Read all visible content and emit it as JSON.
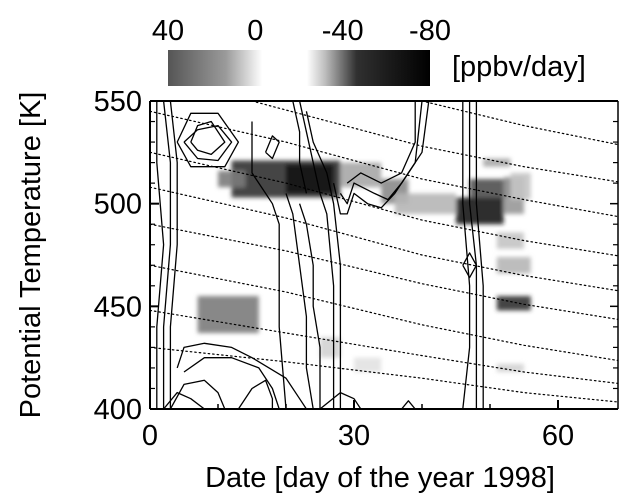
{
  "chart_data": {
    "type": "heatmap",
    "title": "",
    "xlabel": "Date [day of the year 1998]",
    "ylabel": "Potential Temperature [K]",
    "xlim": [
      0,
      70
    ],
    "ylim": [
      400,
      550
    ],
    "xticks": [
      0,
      30,
      60
    ],
    "yticks": [
      400,
      450,
      500,
      550
    ],
    "colorbar": {
      "ticks": [
        40,
        0,
        -40,
        -80
      ],
      "range": [
        40,
        -80
      ],
      "unit": "[ppbv/day]",
      "colors": [
        "#3a3a3a",
        "#ffffff",
        "#000000"
      ]
    },
    "heat_cells": [
      {
        "x": [
          12,
          28
        ],
        "y": [
          503,
          521
        ],
        "value": -70
      },
      {
        "x": [
          10,
          14
        ],
        "y": [
          508,
          516
        ],
        "value": -45
      },
      {
        "x": [
          20,
          27
        ],
        "y": [
          505,
          519
        ],
        "value": -80
      },
      {
        "x": [
          28,
          34
        ],
        "y": [
          508,
          520
        ],
        "value": -30
      },
      {
        "x": [
          34,
          38
        ],
        "y": [
          500,
          512
        ],
        "value": -40
      },
      {
        "x": [
          36,
          45
        ],
        "y": [
          495,
          505
        ],
        "value": -25
      },
      {
        "x": [
          45,
          52
        ],
        "y": [
          490,
          503
        ],
        "value": -80
      },
      {
        "x": [
          47,
          53
        ],
        "y": [
          503,
          512
        ],
        "value": -60
      },
      {
        "x": [
          52,
          55
        ],
        "y": [
          495,
          513
        ],
        "value": -35
      },
      {
        "x": [
          49,
          53
        ],
        "y": [
          518,
          522
        ],
        "value": -30
      },
      {
        "x": [
          53,
          56
        ],
        "y": [
          502,
          515
        ],
        "value": -20
      },
      {
        "x": [
          51,
          55
        ],
        "y": [
          478,
          486
        ],
        "value": -20
      },
      {
        "x": [
          51,
          56
        ],
        "y": [
          466,
          474
        ],
        "value": -25
      },
      {
        "x": [
          51,
          56
        ],
        "y": [
          448,
          455
        ],
        "value": -70
      },
      {
        "x": [
          51,
          55
        ],
        "y": [
          418,
          422
        ],
        "value": -15
      },
      {
        "x": [
          7,
          16
        ],
        "y": [
          437,
          455
        ],
        "value": -45
      },
      {
        "x": [
          25,
          28
        ],
        "y": [
          425,
          435
        ],
        "value": -15
      },
      {
        "x": [
          30,
          34
        ],
        "y": [
          418,
          425
        ],
        "value": -10
      }
    ],
    "contours": [
      [
        [
          1,
          550
        ],
        [
          1,
          520
        ],
        [
          2,
          480
        ],
        [
          1,
          440
        ],
        [
          1,
          400
        ]
      ],
      [
        [
          2,
          550
        ],
        [
          3,
          520
        ],
        [
          3,
          480
        ],
        [
          2,
          440
        ],
        [
          2,
          400
        ]
      ],
      [
        [
          3,
          550
        ],
        [
          4,
          520
        ],
        [
          4,
          480
        ],
        [
          3,
          440
        ],
        [
          3,
          400
        ]
      ],
      [
        [
          6,
          530
        ],
        [
          7,
          538
        ],
        [
          9,
          540
        ],
        [
          11,
          530
        ],
        [
          9,
          524
        ],
        [
          7,
          526
        ],
        [
          6,
          530
        ]
      ],
      [
        [
          5,
          530
        ],
        [
          7,
          536
        ],
        [
          10,
          538
        ],
        [
          12,
          530
        ],
        [
          10,
          521
        ],
        [
          7,
          522
        ],
        [
          5,
          530
        ]
      ],
      [
        [
          4,
          530
        ],
        [
          6,
          544
        ],
        [
          10,
          544
        ],
        [
          13,
          530
        ],
        [
          11,
          518
        ],
        [
          6,
          518
        ],
        [
          4,
          530
        ]
      ],
      [
        [
          15,
          540
        ],
        [
          15,
          515
        ],
        [
          17,
          505
        ],
        [
          18,
          500
        ],
        [
          19,
          490
        ],
        [
          19,
          470
        ],
        [
          19,
          440
        ],
        [
          20,
          400
        ]
      ],
      [
        [
          17,
          525
        ],
        [
          18,
          533
        ],
        [
          19,
          530
        ],
        [
          18,
          522
        ],
        [
          17,
          525
        ]
      ],
      [
        [
          20,
          505
        ],
        [
          21,
          495
        ],
        [
          22,
          470
        ],
        [
          23,
          445
        ],
        [
          23,
          420
        ],
        [
          24,
          400
        ]
      ],
      [
        [
          22,
          500
        ],
        [
          23,
          490
        ],
        [
          24,
          470
        ],
        [
          24,
          450
        ],
        [
          25,
          430
        ],
        [
          25,
          400
        ]
      ],
      [
        [
          21,
          550
        ],
        [
          22,
          535
        ],
        [
          22,
          520
        ],
        [
          23,
          505
        ]
      ],
      [
        [
          22,
          550
        ],
        [
          23,
          535
        ],
        [
          24,
          520
        ],
        [
          25,
          505
        ],
        [
          26,
          495
        ],
        [
          27,
          460
        ],
        [
          27,
          440
        ],
        [
          27,
          400
        ]
      ],
      [
        [
          23,
          545
        ],
        [
          24,
          530
        ],
        [
          26,
          515
        ],
        [
          27,
          500
        ],
        [
          28,
          470
        ],
        [
          28,
          440
        ],
        [
          28,
          400
        ]
      ],
      [
        [
          27,
          510
        ],
        [
          28,
          495
        ],
        [
          29,
          495
        ],
        [
          30,
          505
        ],
        [
          32,
          500
        ],
        [
          34,
          498
        ],
        [
          36,
          505
        ],
        [
          38,
          515
        ],
        [
          40,
          525
        ],
        [
          41,
          550
        ]
      ],
      [
        [
          28,
          505
        ],
        [
          29,
          500
        ],
        [
          30,
          510
        ],
        [
          33,
          505
        ],
        [
          35,
          502
        ],
        [
          37,
          510
        ],
        [
          39,
          520
        ],
        [
          40,
          550
        ]
      ],
      [
        [
          29,
          510
        ],
        [
          31,
          515
        ],
        [
          34,
          510
        ],
        [
          37,
          515
        ],
        [
          39,
          530
        ],
        [
          39,
          550
        ]
      ],
      [
        [
          46,
          550
        ],
        [
          46,
          500
        ],
        [
          47,
          460
        ],
        [
          47,
          430
        ],
        [
          46,
          400
        ]
      ],
      [
        [
          47,
          550
        ],
        [
          47,
          500
        ],
        [
          48,
          470
        ],
        [
          48,
          440
        ],
        [
          48,
          400
        ]
      ],
      [
        [
          48,
          550
        ],
        [
          48,
          500
        ],
        [
          49,
          460
        ],
        [
          49,
          420
        ],
        [
          49,
          400
        ]
      ],
      [
        [
          46,
          470
        ],
        [
          47,
          476
        ],
        [
          48,
          470
        ],
        [
          47,
          464
        ],
        [
          46,
          470
        ]
      ],
      [
        [
          2,
          400
        ],
        [
          4,
          408
        ],
        [
          6,
          405
        ],
        [
          8,
          400
        ]
      ],
      [
        [
          3,
          400
        ],
        [
          5,
          412
        ],
        [
          8,
          414
        ],
        [
          10,
          408
        ],
        [
          11,
          400
        ]
      ],
      [
        [
          4,
          420
        ],
        [
          5,
          430
        ],
        [
          8,
          432
        ],
        [
          12,
          430
        ],
        [
          15,
          425
        ],
        [
          20,
          415
        ],
        [
          22,
          405
        ],
        [
          23,
          400
        ]
      ],
      [
        [
          5,
          418
        ],
        [
          8,
          425
        ],
        [
          12,
          425
        ],
        [
          16,
          420
        ],
        [
          18,
          410
        ],
        [
          19,
          400
        ]
      ],
      [
        [
          13,
          400
        ],
        [
          15,
          410
        ],
        [
          17,
          414
        ],
        [
          18,
          405
        ],
        [
          18,
          400
        ]
      ],
      [
        [
          25,
          400
        ],
        [
          28,
          408
        ],
        [
          30,
          405
        ],
        [
          31,
          400
        ]
      ],
      [
        [
          37,
          400
        ],
        [
          38,
          404
        ],
        [
          39,
          400
        ]
      ]
    ],
    "isentropes": [
      [
        [
          40,
          550
        ],
        [
          55,
          538
        ],
        [
          70,
          528
        ]
      ],
      [
        [
          15,
          550
        ],
        [
          40,
          528
        ],
        [
          55,
          518
        ],
        [
          70,
          510
        ]
      ],
      [
        [
          0,
          545
        ],
        [
          20,
          530
        ],
        [
          40,
          512
        ],
        [
          55,
          502
        ],
        [
          70,
          493
        ]
      ],
      [
        [
          0,
          525
        ],
        [
          20,
          510
        ],
        [
          40,
          492
        ],
        [
          55,
          482
        ],
        [
          70,
          474
        ]
      ],
      [
        [
          0,
          508
        ],
        [
          20,
          493
        ],
        [
          40,
          475
        ],
        [
          55,
          465
        ],
        [
          70,
          457
        ]
      ],
      [
        [
          0,
          490
        ],
        [
          20,
          477
        ],
        [
          40,
          461
        ],
        [
          55,
          451
        ],
        [
          70,
          443
        ]
      ],
      [
        [
          0,
          470
        ],
        [
          20,
          457
        ],
        [
          40,
          441
        ],
        [
          55,
          431
        ],
        [
          70,
          423
        ]
      ],
      [
        [
          0,
          448
        ],
        [
          20,
          437
        ],
        [
          40,
          426
        ],
        [
          55,
          418
        ],
        [
          70,
          412
        ]
      ],
      [
        [
          0,
          430
        ],
        [
          20,
          423
        ],
        [
          40,
          415
        ],
        [
          55,
          408
        ],
        [
          70,
          403
        ]
      ]
    ],
    "grid": false
  }
}
